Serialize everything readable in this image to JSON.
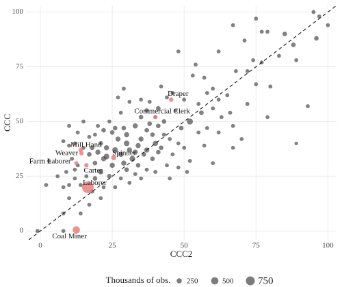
{
  "chart_data": {
    "type": "scatter",
    "x_label": "CCC2",
    "y_label": "CCC",
    "xlim": [
      -5,
      103
    ],
    "ylim": [
      -4,
      103
    ],
    "xticks": [
      0,
      25,
      50,
      75,
      100
    ],
    "yticks": [
      0,
      25,
      50,
      75,
      100
    ],
    "grid": true,
    "reference_line": "y=x",
    "color": "#3d3d3d",
    "highlight_color": "#e87f80",
    "points": [
      [
        95,
        100,
        150
      ],
      [
        97,
        98,
        150
      ],
      [
        96,
        88,
        200
      ],
      [
        100,
        94,
        150
      ],
      [
        75,
        97,
        150
      ],
      [
        77,
        77,
        150
      ],
      [
        77,
        91,
        150
      ],
      [
        79,
        91,
        150
      ],
      [
        67,
        94,
        150
      ],
      [
        85,
        90,
        200
      ],
      [
        88,
        85,
        200
      ],
      [
        89,
        78,
        150
      ],
      [
        83,
        80,
        150
      ],
      [
        72,
        73,
        150
      ],
      [
        71,
        87,
        150
      ],
      [
        74,
        78,
        150
      ],
      [
        68,
        73,
        150
      ],
      [
        80,
        66,
        150
      ],
      [
        75,
        67,
        150
      ],
      [
        93,
        57,
        150
      ],
      [
        79,
        52,
        150
      ],
      [
        89,
        40,
        120
      ],
      [
        62,
        82,
        150
      ],
      [
        48,
        82,
        150
      ],
      [
        54,
        76,
        150
      ],
      [
        53,
        71,
        150
      ],
      [
        57,
        70,
        150
      ],
      [
        58,
        63,
        150
      ],
      [
        60,
        65,
        150
      ],
      [
        62,
        60,
        150
      ],
      [
        63,
        52,
        150
      ],
      [
        56,
        54,
        200
      ],
      [
        60,
        56,
        150
      ],
      [
        66,
        54,
        150
      ],
      [
        67,
        48,
        150
      ],
      [
        58,
        47,
        150
      ],
      [
        52,
        50,
        350
      ],
      [
        55,
        45,
        150
      ],
      [
        49,
        47,
        200
      ],
      [
        48,
        40,
        150
      ],
      [
        45,
        42,
        150
      ],
      [
        46,
        63,
        150
      ],
      [
        42,
        66,
        150
      ],
      [
        44,
        61,
        150
      ],
      [
        41,
        56,
        200
      ],
      [
        38,
        59,
        150
      ],
      [
        37,
        55,
        200
      ],
      [
        35,
        52,
        200
      ],
      [
        31,
        59,
        150
      ],
      [
        28,
        54,
        150
      ],
      [
        33,
        48,
        250
      ],
      [
        37,
        46,
        200
      ],
      [
        38,
        49,
        200
      ],
      [
        41,
        48,
        200
      ],
      [
        43,
        44,
        150
      ],
      [
        40,
        40,
        250
      ],
      [
        35,
        42,
        250
      ],
      [
        30,
        44,
        250
      ],
      [
        30,
        40,
        300
      ],
      [
        27,
        42,
        250
      ],
      [
        25,
        45,
        200
      ],
      [
        24,
        50,
        150
      ],
      [
        22,
        46,
        200
      ],
      [
        20,
        48,
        150
      ],
      [
        19,
        44,
        150
      ],
      [
        17,
        43,
        150
      ],
      [
        21,
        40,
        200
      ],
      [
        23,
        38,
        250
      ],
      [
        26,
        37,
        300
      ],
      [
        28,
        35,
        250
      ],
      [
        31,
        37,
        250
      ],
      [
        33,
        36,
        250
      ],
      [
        36,
        35,
        200
      ],
      [
        39,
        33,
        200
      ],
      [
        41,
        36,
        200
      ],
      [
        44,
        30,
        150
      ],
      [
        46,
        35,
        150
      ],
      [
        50,
        38,
        150
      ],
      [
        52,
        32,
        150
      ],
      [
        57,
        39,
        150
      ],
      [
        60,
        31,
        150
      ],
      [
        67,
        38,
        150
      ],
      [
        51,
        27,
        150
      ],
      [
        45,
        24,
        150
      ],
      [
        40,
        27,
        150
      ],
      [
        37,
        28,
        150
      ],
      [
        34,
        30,
        200
      ],
      [
        29,
        31,
        250
      ],
      [
        25,
        30,
        250
      ],
      [
        22,
        33,
        250
      ],
      [
        19,
        31,
        200
      ],
      [
        17,
        35,
        200
      ],
      [
        15,
        38,
        150
      ],
      [
        12,
        40,
        150
      ],
      [
        10,
        39,
        150
      ],
      [
        8,
        41,
        150
      ],
      [
        11,
        33,
        150
      ],
      [
        13,
        30,
        150
      ],
      [
        9,
        27,
        150
      ],
      [
        12,
        24,
        150
      ],
      [
        16,
        25,
        150
      ],
      [
        19,
        24,
        200
      ],
      [
        21,
        27,
        250
      ],
      [
        24,
        25,
        200
      ],
      [
        28,
        24,
        150
      ],
      [
        31,
        22,
        150
      ],
      [
        35,
        24,
        150
      ],
      [
        26,
        20,
        150
      ],
      [
        22,
        20,
        150
      ],
      [
        18,
        18,
        150
      ],
      [
        14,
        21,
        150
      ],
      [
        10,
        21,
        150
      ],
      [
        8,
        20,
        150
      ],
      [
        6,
        25,
        150
      ],
      [
        3,
        32,
        150
      ],
      [
        2,
        21,
        150
      ],
      [
        -1,
        0,
        150
      ],
      [
        8,
        8,
        150
      ],
      [
        10,
        15,
        150
      ],
      [
        14,
        8,
        150
      ],
      [
        8,
        0,
        150
      ],
      [
        17,
        12,
        150
      ],
      [
        21,
        15,
        150
      ],
      [
        13,
        45,
        150
      ],
      [
        10,
        48,
        150
      ],
      [
        15,
        50,
        150
      ],
      [
        12,
        28,
        150
      ],
      [
        27,
        61,
        150
      ],
      [
        32,
        33,
        300
      ],
      [
        34,
        39,
        250
      ],
      [
        37,
        37,
        250
      ],
      [
        43,
        50,
        200
      ],
      [
        29,
        47,
        200
      ],
      [
        26,
        47,
        200
      ],
      [
        18,
        38,
        200
      ],
      [
        20,
        36,
        250
      ],
      [
        23,
        34,
        300
      ],
      [
        30,
        28,
        200
      ],
      [
        33,
        26,
        150
      ],
      [
        39,
        44,
        200
      ],
      [
        40,
        52,
        150
      ],
      [
        35,
        60,
        150
      ],
      [
        29,
        65,
        150
      ],
      [
        55,
        58,
        150
      ],
      [
        47,
        55,
        150
      ],
      [
        50,
        60,
        150
      ],
      [
        62,
        45,
        150
      ],
      [
        72,
        58,
        150
      ],
      [
        65,
        62,
        150
      ],
      [
        70,
        42,
        150
      ],
      [
        48,
        29,
        150
      ],
      [
        42,
        38,
        200
      ]
    ],
    "highlights": [
      {
        "label": "Draper",
        "x": 45.5,
        "y": 60,
        "size": 180
      },
      {
        "label": "Commercial Clerk",
        "x": 40,
        "y": 52,
        "size": 180
      },
      {
        "label": "Mill Hand",
        "x": 14,
        "y": 37,
        "size": 180
      },
      {
        "label": "Weaver",
        "x": 14.3,
        "y": 35.5,
        "size": 180
      },
      {
        "label": "Spinner",
        "x": 25.5,
        "y": 33.5,
        "size": 250
      },
      {
        "label": "Farm Laborer",
        "x": 12.5,
        "y": 31,
        "size": 150
      },
      {
        "label": "Carter",
        "x": 16,
        "y": 30,
        "size": 180
      },
      {
        "label": "Laborer",
        "x": 16.5,
        "y": 20,
        "size": 1300
      },
      {
        "label": "Coal Miner",
        "x": 12.5,
        "y": 0.5,
        "size": 500
      }
    ],
    "size_legend": {
      "title": "Thousands of obs.",
      "values": [
        250,
        500,
        750
      ]
    }
  }
}
